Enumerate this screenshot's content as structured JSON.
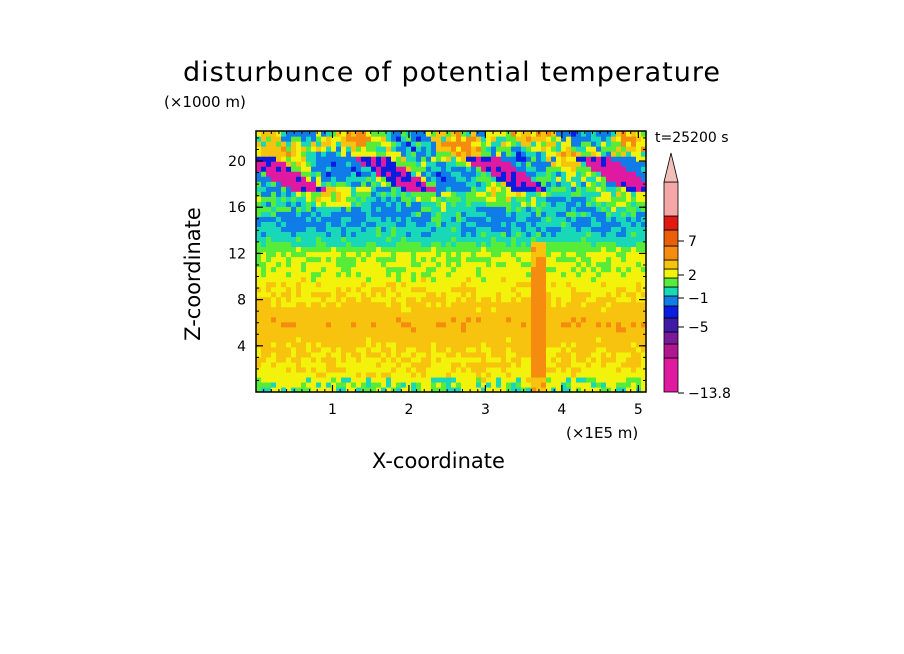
{
  "chart_data": {
    "type": "heatmap",
    "title": "disturbunce of potential temperature",
    "xlabel": "X-coordinate",
    "ylabel": "Z-coordinate",
    "x_unit": "(×1E5 m)",
    "y_unit": "(×1000 m)",
    "timestamp": "t=25200 s",
    "xlim": [
      0,
      5.1
    ],
    "ylim": [
      0,
      22.6
    ],
    "x_ticks": [
      "1",
      "2",
      "3",
      "4",
      "5"
    ],
    "y_ticks": [
      "4",
      "8",
      "12",
      "16",
      "20"
    ],
    "colorbar": {
      "labels": [
        "7",
        "2",
        "−1",
        "−5",
        "−13.8"
      ],
      "label_values": [
        7,
        2,
        -1,
        -5,
        -13.8
      ],
      "extend": "max",
      "colors": [
        "#e01aa0",
        "#b0178e",
        "#7a1a9a",
        "#3d1aa8",
        "#0a1ce0",
        "#0f7ce8",
        "#18d8b8",
        "#58ec3a",
        "#f2f20a",
        "#f7c30e",
        "#f58c10",
        "#eb5f0c",
        "#e01a10",
        "#f5a6a6",
        "#f2bfb8"
      ],
      "band_heights": [
        34,
        14,
        12,
        14,
        12,
        10,
        9,
        9,
        9,
        9,
        14,
        16,
        14,
        34
      ]
    },
    "colormap_stops": [
      {
        "v": -13.8,
        "c": "#e01aa0"
      },
      {
        "v": -5,
        "c": "#0a1ce0"
      },
      {
        "v": -3,
        "c": "#0f7ce8"
      },
      {
        "v": -1,
        "c": "#18d8b8"
      },
      {
        "v": 0,
        "c": "#58ec3a"
      },
      {
        "v": 1,
        "c": "#f2f20a"
      },
      {
        "v": 2,
        "c": "#f7c30e"
      },
      {
        "v": 3.5,
        "c": "#f58c10"
      },
      {
        "v": 7,
        "c": "#e01a10"
      },
      {
        "v": 9,
        "c": "#f5a6a6"
      }
    ],
    "field_profile": [
      {
        "z": 0.5,
        "mean": 1.2
      },
      {
        "z": 2,
        "mean": 1.8
      },
      {
        "z": 4,
        "mean": 2.3
      },
      {
        "z": 6,
        "mean": 3.2
      },
      {
        "z": 8,
        "mean": 2.0
      },
      {
        "z": 10,
        "mean": 1.4
      },
      {
        "z": 12,
        "mean": 1.0
      },
      {
        "z": 13.5,
        "mean": -0.5
      },
      {
        "z": 15,
        "mean": -1.2
      },
      {
        "z": 17,
        "mean": 0.5
      },
      {
        "z": 19,
        "mean": -0.8
      },
      {
        "z": 21,
        "mean": 0.8
      },
      {
        "z": 22.6,
        "mean": 1.0
      }
    ]
  }
}
